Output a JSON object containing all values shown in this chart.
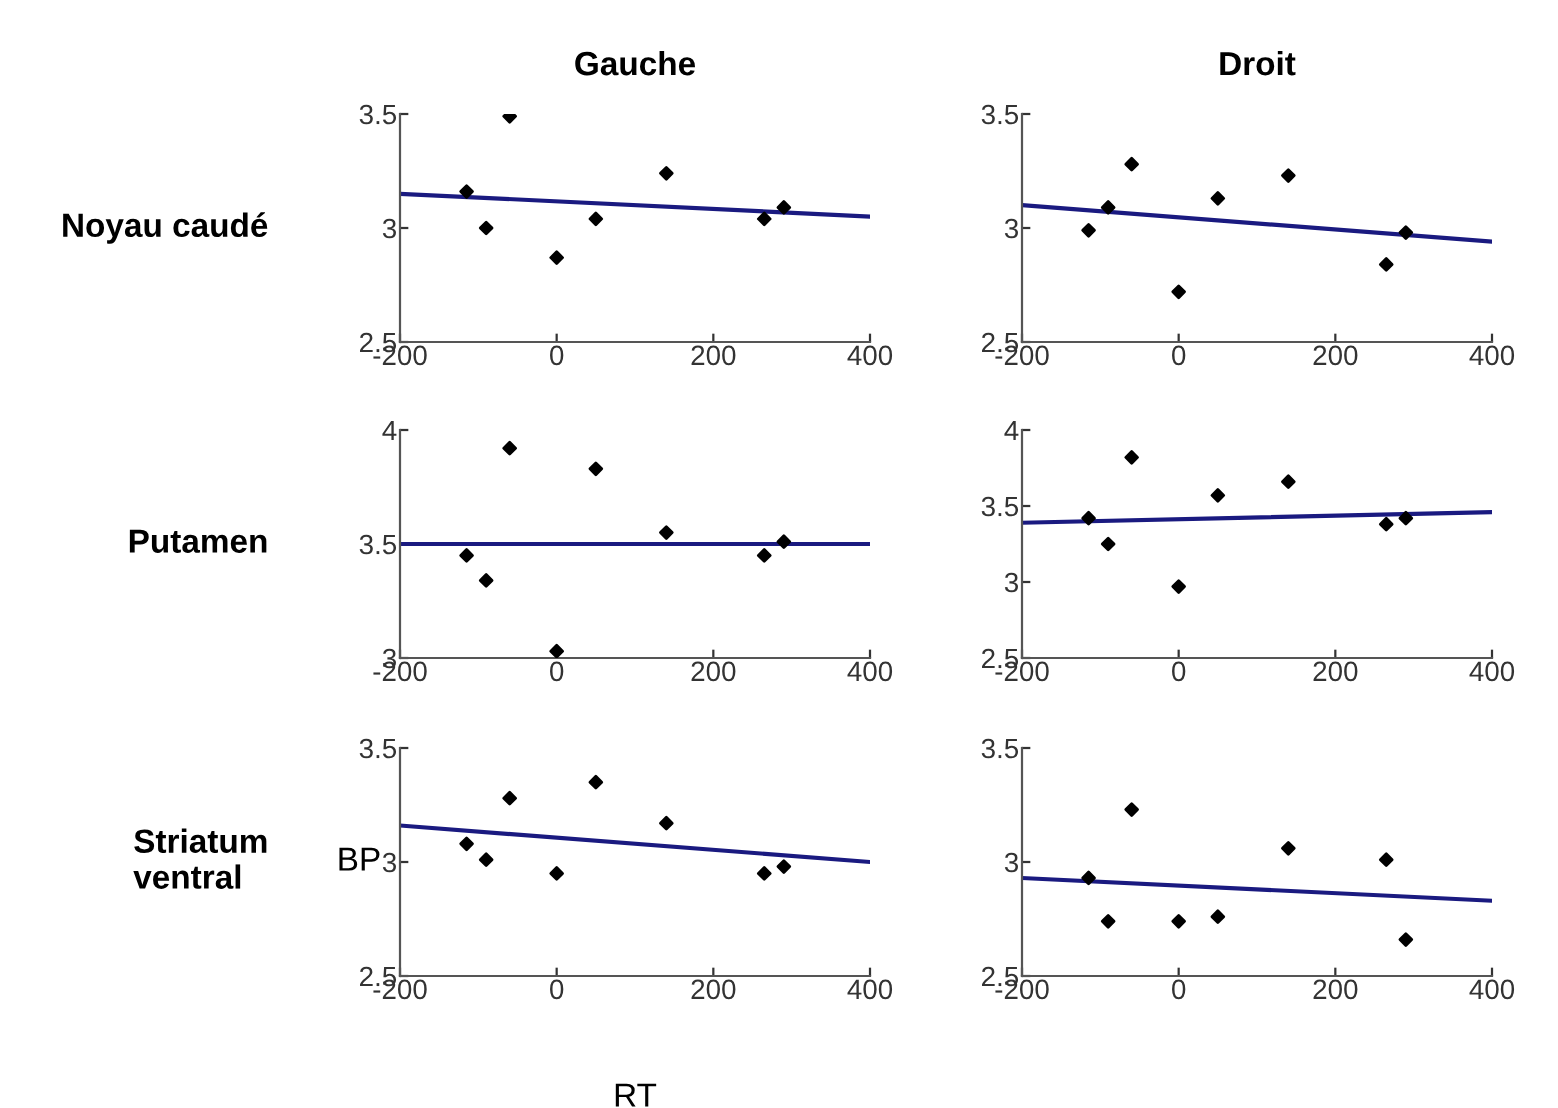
{
  "chart_data": [
    {
      "type": "scatter",
      "title": "Gauche",
      "ylabel": "Noyau caudé",
      "xlim": [
        -200,
        400
      ],
      "xticks": [
        -200,
        0,
        200,
        400
      ],
      "ylim": [
        2.5,
        3.5
      ],
      "yticks": [
        2.5,
        3,
        3.5
      ],
      "grid": false,
      "series": [
        {
          "marker": "diamond",
          "color": "#000000",
          "x": [
            -115,
            -90,
            -60,
            0,
            50,
            140,
            265,
            290
          ],
          "values": [
            3.16,
            3.0,
            3.49,
            2.87,
            3.04,
            3.24,
            3.04,
            3.09
          ]
        },
        {
          "type": "line",
          "color": "#1a1a80",
          "x": [
            -200,
            400
          ],
          "values": [
            3.15,
            3.05
          ]
        }
      ]
    },
    {
      "type": "scatter",
      "title": "Droit",
      "xlim": [
        -200,
        400
      ],
      "xticks": [
        -200,
        0,
        200,
        400
      ],
      "ylim": [
        2.5,
        3.5
      ],
      "yticks": [
        2.5,
        3,
        3.5
      ],
      "grid": false,
      "series": [
        {
          "marker": "diamond",
          "color": "#000000",
          "x": [
            -115,
            -90,
            -60,
            0,
            50,
            140,
            265,
            290
          ],
          "values": [
            2.99,
            3.09,
            3.28,
            2.72,
            3.13,
            3.23,
            2.84,
            2.98
          ]
        },
        {
          "type": "line",
          "color": "#1a1a80",
          "x": [
            -200,
            400
          ],
          "values": [
            3.1,
            2.94
          ]
        }
      ]
    },
    {
      "type": "scatter",
      "ylabel": "Putamen",
      "xlim": [
        -200,
        400
      ],
      "xticks": [
        -200,
        0,
        200,
        400
      ],
      "ylim": [
        3,
        4
      ],
      "yticks": [
        3,
        3.5,
        4
      ],
      "grid": false,
      "series": [
        {
          "marker": "diamond",
          "color": "#000000",
          "x": [
            -115,
            -90,
            -60,
            0,
            50,
            140,
            265,
            290
          ],
          "values": [
            3.45,
            3.34,
            3.92,
            3.03,
            3.83,
            3.55,
            3.45,
            3.51
          ]
        },
        {
          "type": "line",
          "color": "#1a1a80",
          "x": [
            -200,
            400
          ],
          "values": [
            3.5,
            3.5
          ]
        }
      ]
    },
    {
      "type": "scatter",
      "xlim": [
        -200,
        400
      ],
      "xticks": [
        -200,
        0,
        200,
        400
      ],
      "ylim": [
        2.5,
        4
      ],
      "yticks": [
        2.5,
        3,
        3.5,
        4
      ],
      "grid": false,
      "series": [
        {
          "marker": "diamond",
          "color": "#000000",
          "x": [
            -115,
            -90,
            -60,
            0,
            50,
            140,
            265,
            290
          ],
          "values": [
            3.42,
            3.25,
            3.82,
            2.97,
            3.57,
            3.66,
            3.38,
            3.42
          ]
        },
        {
          "type": "line",
          "color": "#1a1a80",
          "x": [
            -200,
            400
          ],
          "values": [
            3.39,
            3.46
          ]
        }
      ]
    },
    {
      "type": "scatter",
      "ylabel": "Striatum\nventral",
      "xlabel": "RT",
      "annotations": [
        "BP"
      ],
      "xlim": [
        -200,
        400
      ],
      "xticks": [
        -200,
        0,
        200,
        400
      ],
      "ylim": [
        2.5,
        3.5
      ],
      "yticks": [
        2.5,
        3,
        3.5
      ],
      "grid": false,
      "series": [
        {
          "marker": "diamond",
          "color": "#000000",
          "x": [
            -115,
            -90,
            -60,
            0,
            50,
            140,
            265,
            290
          ],
          "values": [
            3.08,
            3.01,
            3.28,
            2.95,
            3.35,
            3.17,
            2.95,
            2.98
          ]
        },
        {
          "type": "line",
          "color": "#1a1a80",
          "x": [
            -200,
            400
          ],
          "values": [
            3.16,
            3.0
          ]
        }
      ]
    },
    {
      "type": "scatter",
      "xlim": [
        -200,
        400
      ],
      "xticks": [
        -200,
        0,
        200,
        400
      ],
      "ylim": [
        2.5,
        3.5
      ],
      "yticks": [
        2.5,
        3,
        3.5
      ],
      "grid": false,
      "series": [
        {
          "marker": "diamond",
          "color": "#000000",
          "x": [
            -115,
            -90,
            -60,
            0,
            50,
            140,
            265,
            290
          ],
          "values": [
            2.93,
            2.74,
            3.23,
            2.74,
            2.76,
            3.06,
            3.01,
            2.66
          ]
        },
        {
          "type": "line",
          "color": "#1a1a80",
          "x": [
            -200,
            400
          ],
          "values": [
            2.93,
            2.83
          ]
        }
      ]
    }
  ]
}
